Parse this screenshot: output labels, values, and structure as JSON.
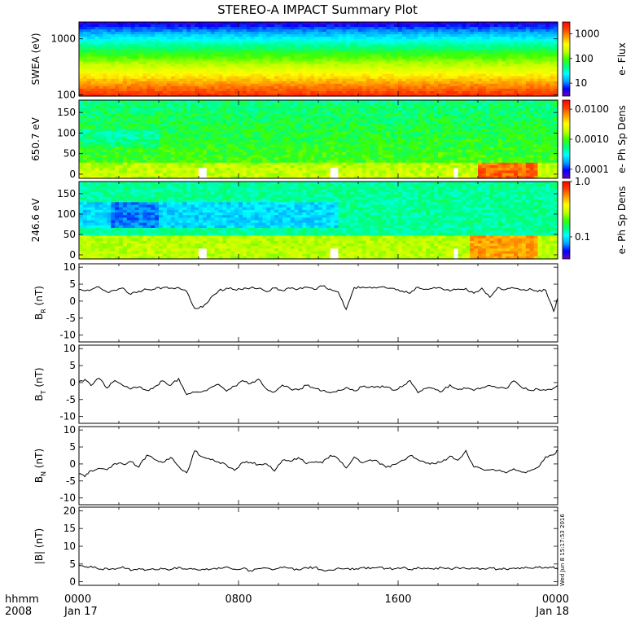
{
  "title": "STEREO-A IMPACT Summary Plot",
  "time_axis": {
    "corner_labels": [
      "hhmm",
      "2008"
    ],
    "ticks": [
      {
        "hhmm": "0000",
        "date": "Jan 17",
        "hour": 0
      },
      {
        "hhmm": "0800",
        "date": "",
        "hour": 8
      },
      {
        "hhmm": "1600",
        "date": "",
        "hour": 16
      },
      {
        "hhmm": "0000",
        "date": "Jan 18",
        "hour": 24
      }
    ],
    "range_hours": [
      0,
      24
    ]
  },
  "colors": {
    "colormap": [
      "#7000c0",
      "#0000ff",
      "#00a0ff",
      "#00ffff",
      "#00ff80",
      "#40ff00",
      "#c0ff00",
      "#ffff00",
      "#ffa000",
      "#ff4000",
      "#ff0000"
    ],
    "line": "#000000"
  },
  "timestamp": "Wed Jun  8 15:17:53 2016",
  "chart_data": [
    {
      "type": "heatmap",
      "ylabel": "SWEA (eV)",
      "yscale": "log",
      "ylim": [
        95,
        2000
      ],
      "yticks": [
        {
          "value": 1000,
          "label": "1000"
        },
        {
          "value": 100,
          "label": "100"
        }
      ],
      "colorbar": {
        "label": "e- Flux",
        "scale": "log",
        "range": [
          3,
          3000
        ],
        "ticks": [
          {
            "value": 1000,
            "label": "1000"
          },
          {
            "value": 100,
            "label": "100"
          },
          {
            "value": 10,
            "label": "10"
          }
        ]
      },
      "description_rows": [
        {
          "energy_ev": 1600,
          "level": 0.05
        },
        {
          "energy_ev": 1200,
          "level": 0.12
        },
        {
          "energy_ev": 900,
          "level": 0.22
        },
        {
          "energy_ev": 700,
          "level": 0.33
        },
        {
          "energy_ev": 550,
          "level": 0.42
        },
        {
          "energy_ev": 420,
          "level": 0.5
        },
        {
          "energy_ev": 320,
          "level": 0.58
        },
        {
          "energy_ev": 240,
          "level": 0.66
        },
        {
          "energy_ev": 180,
          "level": 0.78
        },
        {
          "energy_ev": 140,
          "level": 0.86
        },
        {
          "energy_ev": 110,
          "level": 0.9
        }
      ]
    },
    {
      "type": "heatmap",
      "ylabel": "650.7 eV",
      "yscale": "linear",
      "ylim": [
        -10,
        180
      ],
      "yticks": [
        {
          "value": 150,
          "label": "150"
        },
        {
          "value": 100,
          "label": "100"
        },
        {
          "value": 50,
          "label": "50"
        },
        {
          "value": 0,
          "label": "0"
        }
      ],
      "colorbar": {
        "label": "e- Ph Sp Dens",
        "scale": "log",
        "range": [
          5e-05,
          0.02
        ],
        "ticks": [
          {
            "value": 0.01,
            "label": "0.0100"
          },
          {
            "value": 0.001,
            "label": "0.0010"
          },
          {
            "value": 0.0001,
            "label": "0.0001"
          }
        ]
      },
      "gaps_hours": [
        6.2,
        12.8,
        18.9
      ]
    },
    {
      "type": "heatmap",
      "ylabel": "246.6 eV",
      "yscale": "linear",
      "ylim": [
        -10,
        180
      ],
      "yticks": [
        {
          "value": 150,
          "label": "150"
        },
        {
          "value": 100,
          "label": "100"
        },
        {
          "value": 50,
          "label": "50"
        },
        {
          "value": 0,
          "label": "0"
        }
      ],
      "colorbar": {
        "label": "e- Ph Sp Dens",
        "scale": "log",
        "range": [
          0.04,
          1.0
        ],
        "ticks": [
          {
            "value": 1.0,
            "label": "1.0"
          },
          {
            "value": 0.1,
            "label": "0.1"
          }
        ]
      },
      "gaps_hours": [
        6.2,
        12.8,
        18.9
      ]
    },
    {
      "type": "line",
      "ylabel_main": "B",
      "ylabel_sub": "R",
      "ylabel_unit": " (nT)",
      "ylim": [
        -12,
        11
      ],
      "yticks": [
        10,
        5,
        0,
        -5,
        -10
      ],
      "series": [
        {
          "x": [
            0,
            0.3,
            0.6,
            1,
            1.4,
            1.8,
            2.2,
            2.6,
            3,
            3.4,
            3.8,
            4.2,
            4.6,
            5,
            5.4,
            5.8,
            6.2,
            6.6,
            7,
            7.4,
            7.8,
            8.2,
            8.6,
            9,
            9.4,
            9.8,
            10.2,
            10.6,
            11,
            11.4,
            11.8,
            12.2,
            12.6,
            13,
            13.4,
            13.8,
            14.2,
            14.6,
            15,
            15.4,
            15.8,
            16.2,
            16.6,
            17,
            17.4,
            17.8,
            18.2,
            18.6,
            19,
            19.4,
            19.8,
            20.2,
            20.6,
            21,
            21.4,
            21.8,
            22.2,
            22.6,
            23,
            23.4,
            23.8,
            24
          ],
          "y": [
            3.2,
            3.4,
            3.0,
            3.8,
            2.6,
            3.5,
            3.9,
            2.4,
            3.1,
            3.7,
            3.2,
            4.1,
            3.6,
            4.0,
            2.8,
            -2.0,
            -1.6,
            1.0,
            3.2,
            3.5,
            3.8,
            3.4,
            3.9,
            3.6,
            3.1,
            3.8,
            3.2,
            3.9,
            3.5,
            4.0,
            3.8,
            4.1,
            3.4,
            2.6,
            -2.6,
            3.8,
            3.9,
            4.0,
            3.7,
            3.6,
            3.5,
            3.0,
            2.4,
            3.9,
            3.5,
            3.8,
            3.3,
            2.8,
            3.4,
            3.9,
            2.2,
            3.6,
            1.0,
            3.7,
            3.2,
            3.6,
            3.0,
            3.3,
            2.6,
            3.4,
            -2.6,
            1.0
          ]
        }
      ]
    },
    {
      "type": "line",
      "ylabel_main": "B",
      "ylabel_sub": "T",
      "ylabel_unit": " (nT)",
      "ylim": [
        -12,
        11
      ],
      "yticks": [
        10,
        5,
        0,
        -5,
        -10
      ],
      "series": [
        {
          "x": [
            0,
            0.3,
            0.6,
            1,
            1.4,
            1.8,
            2.2,
            2.6,
            3,
            3.4,
            3.8,
            4.2,
            4.6,
            5,
            5.4,
            5.8,
            6.2,
            6.6,
            7,
            7.4,
            7.8,
            8.2,
            8.6,
            9,
            9.4,
            9.8,
            10.2,
            10.6,
            11,
            11.4,
            11.8,
            12.2,
            12.6,
            13,
            13.4,
            13.8,
            14.2,
            14.6,
            15,
            15.4,
            15.8,
            16.2,
            16.6,
            17,
            17.4,
            17.8,
            18.2,
            18.6,
            19,
            19.4,
            19.8,
            20.2,
            20.6,
            21,
            21.4,
            21.8,
            22.2,
            22.6,
            23,
            23.4,
            23.8,
            24
          ],
          "y": [
            0.5,
            1.2,
            -0.8,
            1.6,
            -1.5,
            0.3,
            -0.5,
            -2.0,
            -1.0,
            -2.4,
            -1.2,
            0.2,
            -1.0,
            1.0,
            -3.5,
            -3.0,
            -2.6,
            -1.4,
            -0.2,
            -2.4,
            -1.0,
            0.6,
            -0.6,
            0.8,
            -1.8,
            -2.6,
            -0.8,
            -2.2,
            -2.0,
            -1.0,
            -1.6,
            -2.4,
            -3.0,
            -2.0,
            -1.2,
            -2.4,
            -1.6,
            -1.0,
            -0.8,
            -1.4,
            -2.6,
            -1.6,
            0.4,
            -2.8,
            -2.0,
            -1.6,
            -2.8,
            -1.0,
            -2.2,
            -1.4,
            -2.6,
            -1.6,
            -1.0,
            -2.0,
            -1.8,
            0.8,
            -1.6,
            -2.2,
            -1.8,
            -2.4,
            -2.0,
            -1.0
          ]
        }
      ]
    },
    {
      "type": "line",
      "ylabel_main": "B",
      "ylabel_sub": "N",
      "ylabel_unit": " (nT)",
      "ylim": [
        -12,
        11
      ],
      "yticks": [
        10,
        5,
        0,
        -5,
        -10
      ],
      "series": [
        {
          "x": [
            0,
            0.3,
            0.6,
            1,
            1.4,
            1.8,
            2.2,
            2.6,
            3,
            3.4,
            3.8,
            4.2,
            4.6,
            5,
            5.4,
            5.8,
            6.2,
            6.6,
            7,
            7.4,
            7.8,
            8.2,
            8.6,
            9,
            9.4,
            9.8,
            10.2,
            10.6,
            11,
            11.4,
            11.8,
            12.2,
            12.6,
            13,
            13.4,
            13.8,
            14.2,
            14.6,
            15,
            15.4,
            15.8,
            16.2,
            16.6,
            17,
            17.4,
            17.8,
            18.2,
            18.6,
            19,
            19.4,
            19.8,
            20.2,
            20.6,
            21,
            21.4,
            21.8,
            22.2,
            22.6,
            23,
            23.4,
            23.8,
            24
          ],
          "y": [
            -2.8,
            -3.4,
            -2.2,
            -1.0,
            -2.0,
            0.2,
            -0.4,
            0.6,
            -1.0,
            3.0,
            1.6,
            0.4,
            2.0,
            -0.6,
            -2.6,
            3.6,
            2.2,
            1.0,
            0.4,
            -0.2,
            -1.6,
            0.6,
            0.2,
            -0.4,
            0.4,
            -2.0,
            1.2,
            0.8,
            1.8,
            0.2,
            0.6,
            0.0,
            2.2,
            1.4,
            -0.8,
            1.8,
            0.4,
            1.2,
            0.8,
            -0.6,
            0.2,
            1.0,
            2.6,
            1.4,
            0.4,
            -0.2,
            0.6,
            2.2,
            1.0,
            3.6,
            -0.8,
            -1.2,
            -1.8,
            -2.0,
            -2.4,
            -1.8,
            -2.6,
            -2.2,
            -1.4,
            2.0,
            3.0,
            4.0
          ]
        }
      ]
    },
    {
      "type": "line",
      "ylabel_main": "|B|",
      "ylabel_sub": "",
      "ylabel_unit": " (nT)",
      "ylim": [
        -1,
        21
      ],
      "yticks": [
        20,
        15,
        10,
        5,
        0
      ],
      "series": [
        {
          "x": [
            0,
            0.3,
            0.6,
            1,
            1.4,
            1.8,
            2.2,
            2.6,
            3,
            3.4,
            3.8,
            4.2,
            4.6,
            5,
            5.4,
            5.8,
            6.2,
            6.6,
            7,
            7.4,
            7.8,
            8.2,
            8.6,
            9,
            9.4,
            9.8,
            10.2,
            10.6,
            11,
            11.4,
            11.8,
            12.2,
            12.6,
            13,
            13.4,
            13.8,
            14.2,
            14.6,
            15,
            15.4,
            15.8,
            16.2,
            16.6,
            17,
            17.4,
            17.8,
            18.2,
            18.6,
            19,
            19.4,
            19.8,
            20.2,
            20.6,
            21,
            21.4,
            21.8,
            22.2,
            22.6,
            23,
            23.4,
            23.8,
            24
          ],
          "y": [
            4.8,
            4.2,
            4.4,
            3.2,
            3.8,
            3.6,
            3.9,
            3.4,
            3.7,
            3.5,
            3.8,
            4.0,
            3.6,
            4.2,
            3.8,
            3.4,
            3.6,
            3.9,
            3.7,
            4.0,
            3.6,
            3.8,
            3.5,
            3.9,
            3.7,
            3.6,
            4.1,
            3.8,
            3.5,
            3.9,
            4.0,
            3.7,
            3.6,
            3.8,
            3.9,
            3.6,
            3.7,
            4.0,
            3.8,
            3.5,
            3.7,
            3.9,
            3.6,
            3.8,
            3.4,
            3.7,
            3.9,
            3.6,
            3.8,
            3.5,
            3.9,
            3.7,
            3.6,
            3.8,
            3.5,
            3.7,
            3.9,
            3.6,
            3.8,
            3.9,
            4.2,
            3.6
          ]
        }
      ]
    }
  ]
}
